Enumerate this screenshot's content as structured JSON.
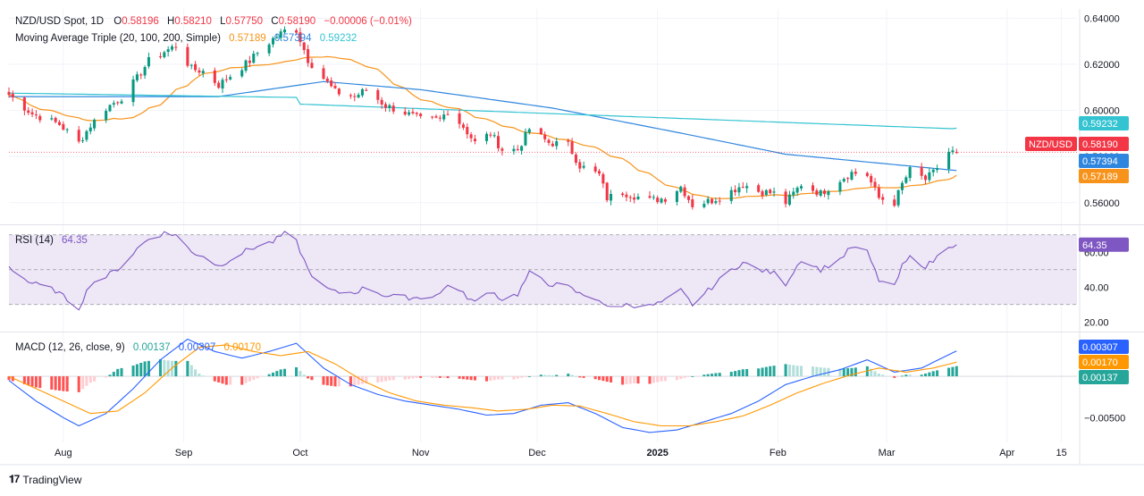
{
  "header": {
    "symbol": "NZD/USD Spot, 1D",
    "o_label": "O",
    "o_value": "0.58196",
    "h_label": "H",
    "h_value": "0.58210",
    "l_label": "L",
    "l_value": "0.57750",
    "c_label": "C",
    "c_value": "0.58190",
    "change": "−0.00006 (−0.01%)",
    "ma_title": "Moving Average Triple (20, 100, 200, Simple)",
    "ma20_value": "0.57189",
    "ma100_value": "0.57394",
    "ma200_value": "0.59232"
  },
  "rsi_legend": {
    "title": "RSI (14)",
    "value": "64.35"
  },
  "macd_legend": {
    "title": "MACD (12, 26, close, 9)",
    "hist_value": "0.00137",
    "macd_value": "0.00307",
    "signal_value": "0.00170"
  },
  "brand": {
    "name": "TradingView"
  },
  "colors": {
    "up": "#089981",
    "down": "#f23645",
    "ma20": "#f7931a",
    "ma100": "#2e86de",
    "ma200": "#33c3d1",
    "rsi": "#7e57c2",
    "rsi_band": "#ede7f6",
    "macd": "#2962ff",
    "signal": "#ff9800",
    "hist_up_strong": "#26a69a",
    "hist_up_weak": "#b2dfdb",
    "hist_down_strong": "#ff5252",
    "hist_down_weak": "#ffcdd2",
    "grid": "#f0f3fa",
    "pane_border": "#e0e3eb"
  },
  "chart_data": [
    {
      "type": "candlestick",
      "name": "NZD/USD Spot, 1D",
      "x_range": [
        "2024-07-18",
        "2025-04-19"
      ],
      "ylim": [
        0.551,
        0.644
      ],
      "yticks": [
        0.56,
        0.58,
        0.6,
        0.62,
        0.64
      ],
      "ytick_labels": [
        "0.56000",
        "0.58000",
        "0.60000",
        "0.62000",
        "0.64000"
      ],
      "last_close": 0.5819,
      "price_tags": [
        {
          "label": "0.59232",
          "value": 0.59232,
          "color": "#33c3d1"
        },
        {
          "label": "NZD/USD",
          "price_label": "0.58190",
          "value": 0.5819,
          "color": "#f23645"
        },
        {
          "label": "0.57394",
          "value": 0.57394,
          "color": "#2e86de"
        },
        {
          "label": "0.57189",
          "value": 0.57189,
          "color": "#f7931a"
        }
      ],
      "close_anchors": [
        [
          "2024-07-18",
          0.6068
        ],
        [
          "2024-07-24",
          0.5985
        ],
        [
          "2024-07-31",
          0.594
        ],
        [
          "2024-08-05",
          0.586
        ],
        [
          "2024-08-08",
          0.5935
        ],
        [
          "2024-08-12",
          0.601
        ],
        [
          "2024-08-16",
          0.6055
        ],
        [
          "2024-08-20",
          0.614
        ],
        [
          "2024-08-23",
          0.6215
        ],
        [
          "2024-08-27",
          0.6255
        ],
        [
          "2024-08-30",
          0.628
        ],
        [
          "2024-09-03",
          0.618
        ],
        [
          "2024-09-06",
          0.617
        ],
        [
          "2024-09-10",
          0.611
        ],
        [
          "2024-09-13",
          0.615
        ],
        [
          "2024-09-18",
          0.6215
        ],
        [
          "2024-09-20",
          0.625
        ],
        [
          "2024-09-24",
          0.631
        ],
        [
          "2024-09-27",
          0.6345
        ],
        [
          "2024-09-30",
          0.635
        ],
        [
          "2024-10-03",
          0.622
        ],
        [
          "2024-10-07",
          0.614
        ],
        [
          "2024-10-10",
          0.608
        ],
        [
          "2024-10-15",
          0.606
        ],
        [
          "2024-10-18",
          0.609
        ],
        [
          "2024-10-23",
          0.602
        ],
        [
          "2024-10-28",
          0.599
        ],
        [
          "2024-11-01",
          0.596
        ],
        [
          "2024-11-06",
          0.596
        ],
        [
          "2024-11-08",
          0.6
        ],
        [
          "2024-11-12",
          0.593
        ],
        [
          "2024-11-15",
          0.586
        ],
        [
          "2024-11-19",
          0.59
        ],
        [
          "2024-11-22",
          0.583
        ],
        [
          "2024-11-26",
          0.583
        ],
        [
          "2024-11-29",
          0.592
        ],
        [
          "2024-12-04",
          0.586
        ],
        [
          "2024-12-09",
          0.585
        ],
        [
          "2024-12-12",
          0.576
        ],
        [
          "2024-12-17",
          0.572
        ],
        [
          "2024-12-19",
          0.562
        ],
        [
          "2024-12-23",
          0.5645
        ],
        [
          "2024-12-30",
          0.561
        ],
        [
          "2025-01-03",
          0.562
        ],
        [
          "2025-01-07",
          0.567
        ],
        [
          "2025-01-10",
          0.559
        ],
        [
          "2025-01-15",
          0.561
        ],
        [
          "2025-01-20",
          0.565
        ],
        [
          "2025-01-23",
          0.568
        ],
        [
          "2025-01-27",
          0.565
        ],
        [
          "2025-01-31",
          0.564
        ],
        [
          "2025-02-03",
          0.56
        ],
        [
          "2025-02-07",
          0.568
        ],
        [
          "2025-02-12",
          0.564
        ],
        [
          "2025-02-17",
          0.57
        ],
        [
          "2025-02-20",
          0.573
        ],
        [
          "2025-02-24",
          0.572
        ],
        [
          "2025-02-27",
          0.562
        ],
        [
          "2025-03-03",
          0.56
        ],
        [
          "2025-03-05",
          0.568
        ],
        [
          "2025-03-07",
          0.574
        ],
        [
          "2025-03-11",
          0.57
        ],
        [
          "2025-03-13",
          0.573
        ],
        [
          "2025-03-17",
          0.582
        ],
        [
          "2025-03-19",
          0.5819
        ]
      ]
    },
    {
      "type": "line",
      "name": "RSI (14)",
      "ylim": [
        15,
        75
      ],
      "yticks": [
        20,
        40,
        60
      ],
      "ytick_labels": [
        "20.00",
        "40.00",
        "60.00"
      ],
      "bands": [
        30,
        50,
        70
      ],
      "last_value": 64.35,
      "anchors": [
        [
          "2024-07-18",
          52
        ],
        [
          "2024-07-23",
          43
        ],
        [
          "2024-07-30",
          38
        ],
        [
          "2024-08-05",
          28
        ],
        [
          "2024-08-08",
          42
        ],
        [
          "2024-08-12",
          46
        ],
        [
          "2024-08-16",
          52
        ],
        [
          "2024-08-20",
          62
        ],
        [
          "2024-08-23",
          68
        ],
        [
          "2024-08-27",
          71
        ],
        [
          "2024-08-30",
          70
        ],
        [
          "2024-09-03",
          60
        ],
        [
          "2024-09-06",
          58
        ],
        [
          "2024-09-10",
          52
        ],
        [
          "2024-09-13",
          56
        ],
        [
          "2024-09-18",
          62
        ],
        [
          "2024-09-24",
          66
        ],
        [
          "2024-09-27",
          71
        ],
        [
          "2024-09-30",
          66
        ],
        [
          "2024-10-03",
          50
        ],
        [
          "2024-10-07",
          40
        ],
        [
          "2024-10-10",
          37
        ],
        [
          "2024-10-15",
          37
        ],
        [
          "2024-10-18",
          40
        ],
        [
          "2024-10-23",
          35
        ],
        [
          "2024-10-28",
          34
        ],
        [
          "2024-11-01",
          34
        ],
        [
          "2024-11-06",
          36
        ],
        [
          "2024-11-08",
          42
        ],
        [
          "2024-11-12",
          36
        ],
        [
          "2024-11-15",
          31
        ],
        [
          "2024-11-19",
          38
        ],
        [
          "2024-11-22",
          33
        ],
        [
          "2024-11-26",
          36
        ],
        [
          "2024-11-29",
          48
        ],
        [
          "2024-12-04",
          42
        ],
        [
          "2024-12-09",
          40
        ],
        [
          "2024-12-12",
          36
        ],
        [
          "2024-12-17",
          33
        ],
        [
          "2024-12-19",
          28
        ],
        [
          "2024-12-23",
          30
        ],
        [
          "2024-12-30",
          29
        ],
        [
          "2025-01-03",
          32
        ],
        [
          "2025-01-07",
          38
        ],
        [
          "2025-01-10",
          30
        ],
        [
          "2025-01-15",
          40
        ],
        [
          "2025-01-20",
          50
        ],
        [
          "2025-01-23",
          54
        ],
        [
          "2025-01-27",
          50
        ],
        [
          "2025-01-31",
          48
        ],
        [
          "2025-02-03",
          42
        ],
        [
          "2025-02-07",
          56
        ],
        [
          "2025-02-12",
          50
        ],
        [
          "2025-02-17",
          56
        ],
        [
          "2025-02-20",
          63
        ],
        [
          "2025-02-24",
          60
        ],
        [
          "2025-02-27",
          44
        ],
        [
          "2025-03-03",
          40
        ],
        [
          "2025-03-05",
          52
        ],
        [
          "2025-03-07",
          57
        ],
        [
          "2025-03-11",
          52
        ],
        [
          "2025-03-13",
          55
        ],
        [
          "2025-03-17",
          64
        ],
        [
          "2025-03-19",
          64.35
        ]
      ]
    },
    {
      "type": "bar+line",
      "name": "MACD (12, 26, close, 9)",
      "ylim": [
        -0.008,
        0.0052
      ],
      "yticks": [
        -0.005,
        0.0
      ],
      "ytick_labels": [
        "−0.00500",
        "0.00000"
      ],
      "last_values": {
        "histogram": 0.00137,
        "macd": 0.00307,
        "signal": 0.0017
      },
      "macd_anchors": [
        [
          "2024-07-18",
          -0.0005
        ],
        [
          "2024-07-25",
          -0.003
        ],
        [
          "2024-08-01",
          -0.005
        ],
        [
          "2024-08-05",
          -0.006
        ],
        [
          "2024-08-12",
          -0.0045
        ],
        [
          "2024-08-19",
          -0.0015
        ],
        [
          "2024-08-26",
          0.002
        ],
        [
          "2024-09-02",
          0.0045
        ],
        [
          "2024-09-09",
          0.003
        ],
        [
          "2024-09-16",
          0.0022
        ],
        [
          "2024-09-23",
          0.003
        ],
        [
          "2024-09-30",
          0.004
        ],
        [
          "2024-10-07",
          0.001
        ],
        [
          "2024-10-14",
          -0.001
        ],
        [
          "2024-10-21",
          -0.0022
        ],
        [
          "2024-10-28",
          -0.003
        ],
        [
          "2024-11-04",
          -0.0035
        ],
        [
          "2024-11-11",
          -0.004
        ],
        [
          "2024-11-18",
          -0.0047
        ],
        [
          "2024-11-25",
          -0.0045
        ],
        [
          "2024-12-02",
          -0.0035
        ],
        [
          "2024-12-09",
          -0.0032
        ],
        [
          "2024-12-16",
          -0.0045
        ],
        [
          "2024-12-23",
          -0.0062
        ],
        [
          "2024-12-30",
          -0.0068
        ],
        [
          "2025-01-06",
          -0.0065
        ],
        [
          "2025-01-13",
          -0.0055
        ],
        [
          "2025-01-20",
          -0.0045
        ],
        [
          "2025-01-27",
          -0.003
        ],
        [
          "2025-02-03",
          -0.001
        ],
        [
          "2025-02-10",
          0.0
        ],
        [
          "2025-02-17",
          0.0008
        ],
        [
          "2025-02-24",
          0.002
        ],
        [
          "2025-03-03",
          0.0005
        ],
        [
          "2025-03-10",
          0.001
        ],
        [
          "2025-03-19",
          0.00307
        ]
      ],
      "signal_anchors": [
        [
          "2024-07-18",
          0.0
        ],
        [
          "2024-07-25",
          -0.0015
        ],
        [
          "2024-08-01",
          -0.003
        ],
        [
          "2024-08-08",
          -0.0045
        ],
        [
          "2024-08-15",
          -0.0042
        ],
        [
          "2024-08-22",
          -0.002
        ],
        [
          "2024-08-29",
          0.001
        ],
        [
          "2024-09-05",
          0.0035
        ],
        [
          "2024-09-12",
          0.0038
        ],
        [
          "2024-09-19",
          0.003
        ],
        [
          "2024-09-26",
          0.0025
        ],
        [
          "2024-10-03",
          0.003
        ],
        [
          "2024-10-10",
          0.0015
        ],
        [
          "2024-10-17",
          -0.0005
        ],
        [
          "2024-10-24",
          -0.002
        ],
        [
          "2024-10-31",
          -0.003
        ],
        [
          "2024-11-07",
          -0.0035
        ],
        [
          "2024-11-14",
          -0.0038
        ],
        [
          "2024-11-21",
          -0.0042
        ],
        [
          "2024-11-28",
          -0.004
        ],
        [
          "2024-12-05",
          -0.0035
        ],
        [
          "2024-12-12",
          -0.0036
        ],
        [
          "2024-12-19",
          -0.0045
        ],
        [
          "2024-12-26",
          -0.0055
        ],
        [
          "2025-01-02",
          -0.006
        ],
        [
          "2025-01-09",
          -0.006
        ],
        [
          "2025-01-16",
          -0.0055
        ],
        [
          "2025-01-23",
          -0.0048
        ],
        [
          "2025-01-30",
          -0.0035
        ],
        [
          "2025-02-06",
          -0.002
        ],
        [
          "2025-02-13",
          -0.0008
        ],
        [
          "2025-02-20",
          0.0002
        ],
        [
          "2025-02-27",
          0.001
        ],
        [
          "2025-03-06",
          0.0005
        ],
        [
          "2025-03-13",
          0.001
        ],
        [
          "2025-03-19",
          0.0017
        ]
      ]
    }
  ],
  "x_axis": {
    "ticks": [
      {
        "date": "2024-08-01",
        "label": "Aug"
      },
      {
        "date": "2024-09-01",
        "label": "Sep"
      },
      {
        "date": "2024-10-01",
        "label": "Oct"
      },
      {
        "date": "2024-11-01",
        "label": "Nov"
      },
      {
        "date": "2024-12-01",
        "label": "Dec"
      },
      {
        "date": "2025-01-01",
        "label": "2025"
      },
      {
        "date": "2025-02-01",
        "label": "Feb"
      },
      {
        "date": "2025-03-01",
        "label": "Mar"
      },
      {
        "date": "2025-04-01",
        "label": "Apr"
      },
      {
        "date": "2025-04-15",
        "label": "15"
      }
    ]
  }
}
